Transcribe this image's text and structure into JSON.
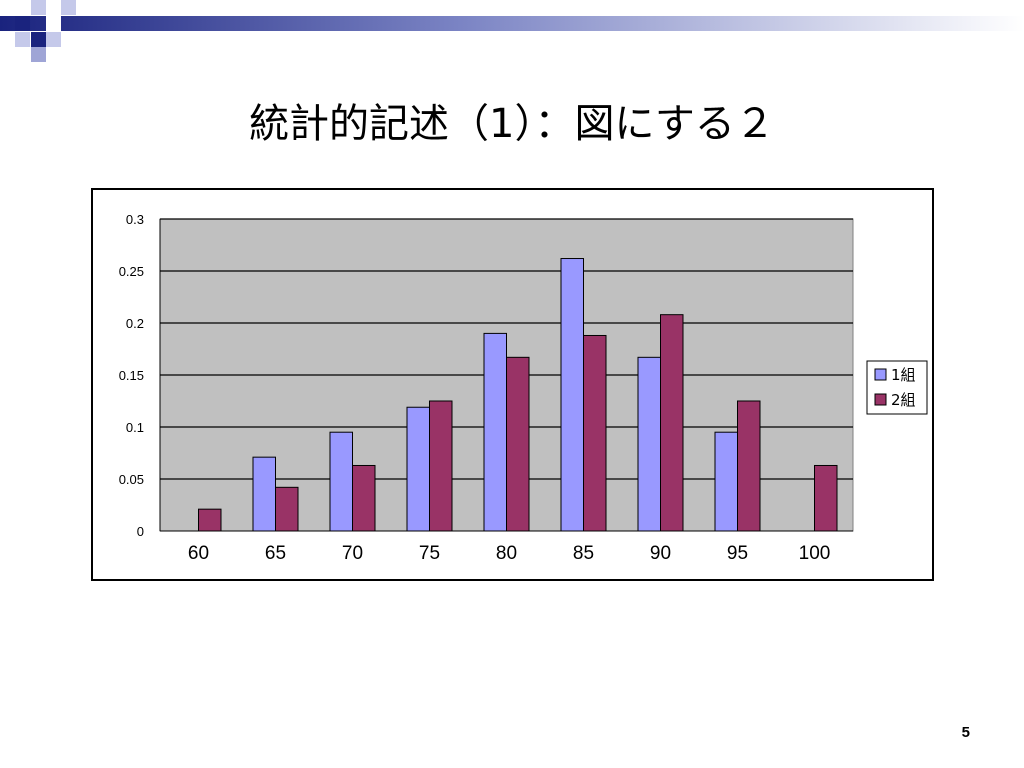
{
  "slide": {
    "title": "統計的記述（1）：図にする２",
    "page_number": "5",
    "accent_color": "#1a237e"
  },
  "chart_data": {
    "type": "bar",
    "title": "",
    "xlabel": "",
    "ylabel": "",
    "categories": [
      "60",
      "65",
      "70",
      "75",
      "80",
      "85",
      "90",
      "95",
      "100"
    ],
    "ylim": [
      0,
      0.3
    ],
    "y_ticks": [
      "0",
      "0.05",
      "0.1",
      "0.15",
      "0.2",
      "0.25",
      "0.3"
    ],
    "grid": true,
    "legend_position": "right",
    "plot_background": "#c0c0c0",
    "series": [
      {
        "name": "1組",
        "color": "#9999ff",
        "values": [
          0,
          0.071,
          0.095,
          0.119,
          0.19,
          0.262,
          0.167,
          0.095,
          0
        ]
      },
      {
        "name": "2組",
        "color": "#993366",
        "values": [
          0.021,
          0.042,
          0.063,
          0.125,
          0.167,
          0.188,
          0.208,
          0.125,
          0.063
        ]
      }
    ]
  }
}
